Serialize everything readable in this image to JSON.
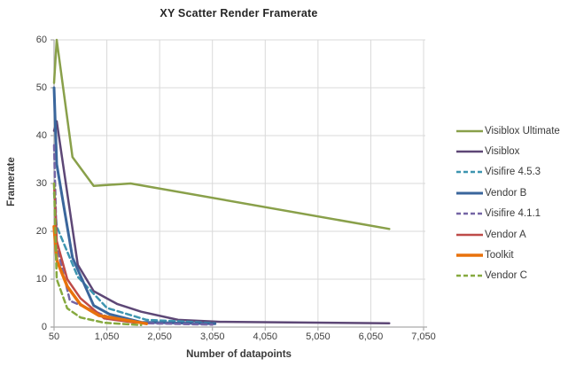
{
  "title": "XY Scatter Render Framerate",
  "axes": {
    "x": {
      "label": "Number of datapoints",
      "tick_labels": [
        "50",
        "1,050",
        "2,050",
        "3,050",
        "4,050",
        "5,050",
        "6,050",
        "7,050"
      ],
      "tick_values": [
        50,
        1050,
        2050,
        3050,
        4050,
        5050,
        6050,
        7050
      ],
      "min": 50,
      "max": 7050
    },
    "y": {
      "label": "Framerate",
      "tick_labels": [
        "0",
        "10",
        "20",
        "30",
        "40",
        "50",
        "60"
      ],
      "tick_values": [
        0,
        10,
        20,
        30,
        40,
        50,
        60
      ],
      "min": 0,
      "max": 60
    }
  },
  "chart_data": {
    "type": "line",
    "title": "XY Scatter Render Framerate",
    "xlabel": "Number of datapoints",
    "ylabel": "Framerate",
    "xlim": [
      50,
      7050
    ],
    "ylim": [
      0,
      60
    ],
    "grid": true,
    "legend_position": "right",
    "series": [
      {
        "name": "Visiblox Ultimate",
        "color": "#89A04A",
        "dash": "solid",
        "width": 2.5,
        "points": [
          [
            50,
            51
          ],
          [
            100,
            60
          ],
          [
            400,
            35.5
          ],
          [
            800,
            29.5
          ],
          [
            1500,
            30
          ],
          [
            6400,
            20.5
          ]
        ]
      },
      {
        "name": "Visiblox",
        "color": "#5D4776",
        "dash": "solid",
        "width": 2.5,
        "points": [
          [
            50,
            41
          ],
          [
            100,
            43
          ],
          [
            500,
            13
          ],
          [
            800,
            7.5
          ],
          [
            1250,
            4.8
          ],
          [
            1700,
            3.2
          ],
          [
            2400,
            1.5
          ],
          [
            3200,
            1.1
          ],
          [
            6400,
            0.8
          ]
        ]
      },
      {
        "name": "Visifire 4.5.3",
        "color": "#3D95B0",
        "dash": "dashed",
        "width": 2.5,
        "points": [
          [
            50,
            28
          ],
          [
            100,
            21
          ],
          [
            500,
            10.5
          ],
          [
            1050,
            4
          ],
          [
            1800,
            1.5
          ],
          [
            2400,
            1.2
          ],
          [
            3100,
            0.8
          ]
        ]
      },
      {
        "name": "Vendor B",
        "color": "#3A669C",
        "dash": "solid",
        "width": 3,
        "points": [
          [
            50,
            50
          ],
          [
            100,
            34
          ],
          [
            400,
            14.5
          ],
          [
            800,
            4.5
          ],
          [
            1100,
            2.7
          ],
          [
            1700,
            1
          ],
          [
            3100,
            0.7
          ]
        ]
      },
      {
        "name": "Visifire 4.1.1",
        "color": "#7565A5",
        "dash": "dashed",
        "width": 2.5,
        "points": [
          [
            50,
            38
          ],
          [
            100,
            17
          ],
          [
            350,
            5.5
          ],
          [
            1050,
            2.2
          ],
          [
            1800,
            0.8
          ],
          [
            3050,
            0.5
          ]
        ]
      },
      {
        "name": "Vendor A",
        "color": "#BE4B48",
        "dash": "solid",
        "width": 2.5,
        "points": [
          [
            50,
            30
          ],
          [
            100,
            18
          ],
          [
            300,
            10
          ],
          [
            550,
            6
          ],
          [
            1000,
            1.8
          ],
          [
            1600,
            0.9
          ]
        ]
      },
      {
        "name": "Toolkit",
        "color": "#E8720C",
        "dash": "solid",
        "width": 3.5,
        "points": [
          [
            50,
            21
          ],
          [
            100,
            14
          ],
          [
            300,
            8.5
          ],
          [
            550,
            4.7
          ],
          [
            900,
            2.4
          ],
          [
            1800,
            0.7
          ]
        ]
      },
      {
        "name": "Vendor C",
        "color": "#86A93F",
        "dash": "dashed",
        "width": 2.5,
        "points": [
          [
            50,
            30
          ],
          [
            100,
            10
          ],
          [
            300,
            3.9
          ],
          [
            550,
            2
          ],
          [
            1000,
            0.9
          ],
          [
            1700,
            0.4
          ]
        ]
      }
    ]
  },
  "colors": {
    "background": "#FFFFFF",
    "gridline": "#D9D9D9",
    "axis": "#ABABAB",
    "text": "#404040"
  }
}
